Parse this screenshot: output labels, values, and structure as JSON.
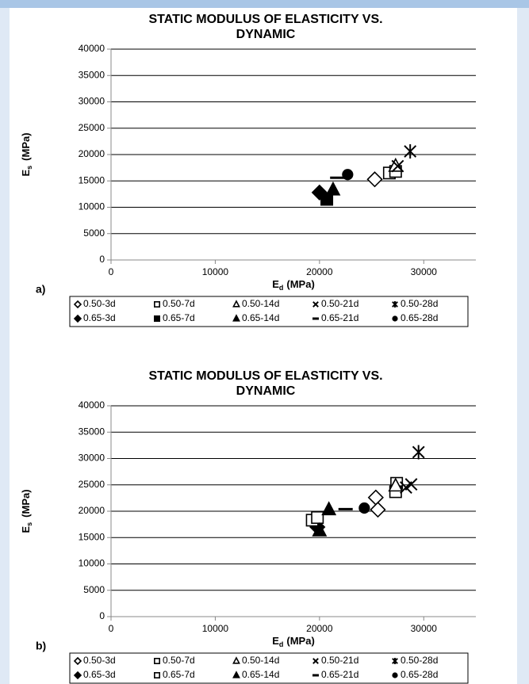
{
  "chart_data": [
    {
      "type": "scatter",
      "panel": "a)",
      "title_lines": [
        "STATIC MODULUS OF ELASTICITY VS.",
        "DYNAMIC"
      ],
      "y_label": {
        "main": "E",
        "sub": "s",
        "unit": "(MPa)"
      },
      "x_label": {
        "main": "E",
        "sub": "d",
        "unit": "(MPa)"
      },
      "xlim": [
        0,
        35000
      ],
      "ylim": [
        0,
        40000
      ],
      "xticks": [
        0,
        10000,
        20000,
        30000
      ],
      "yticks": [
        0,
        5000,
        10000,
        15000,
        20000,
        25000,
        30000,
        35000,
        40000
      ],
      "grid": true,
      "series": [
        {
          "name": "0.50-3d",
          "marker": "diamond-open",
          "color": "#000000",
          "x": [
            25300
          ],
          "values": [
            15300
          ]
        },
        {
          "name": "0.50-7d",
          "marker": "square-open",
          "color": "#000000",
          "x": [
            26700,
            27300
          ],
          "values": [
            16500,
            16800
          ]
        },
        {
          "name": "0.50-14d",
          "marker": "triangle-open",
          "color": "#000000",
          "x": [
            27300
          ],
          "values": [
            17800
          ]
        },
        {
          "name": "0.50-21d",
          "marker": "x",
          "color": "#000000",
          "x": [
            27500
          ],
          "values": [
            17800
          ]
        },
        {
          "name": "0.50-28d",
          "marker": "star",
          "color": "#000000",
          "x": [
            28700
          ],
          "values": [
            20600
          ]
        },
        {
          "name": "0.65-3d",
          "marker": "diamond",
          "color": "#000000",
          "x": [
            20000
          ],
          "values": [
            12800
          ]
        },
        {
          "name": "0.65-7d",
          "marker": "square",
          "color": "#000000",
          "x": [
            20700
          ],
          "values": [
            11500
          ]
        },
        {
          "name": "0.65-14d",
          "marker": "triangle",
          "color": "#000000",
          "x": [
            21300
          ],
          "values": [
            13300
          ]
        },
        {
          "name": "0.65-21d",
          "marker": "dash",
          "color": "#000000",
          "x": [
            21700
          ],
          "values": [
            15600
          ]
        },
        {
          "name": "0.65-28d",
          "marker": "circle",
          "color": "#000000",
          "x": [
            22700
          ],
          "values": [
            16200
          ]
        }
      ]
    },
    {
      "type": "scatter",
      "panel": "b)",
      "title_lines": [
        "STATIC MODULUS OF ELASTICITY VS.",
        "DYNAMIC"
      ],
      "y_label": {
        "main": "E",
        "sub": "s",
        "unit": "(MPa)"
      },
      "x_label": {
        "main": "E",
        "sub": "d",
        "unit": "(MPa)"
      },
      "xlim": [
        0,
        35000
      ],
      "ylim": [
        0,
        40000
      ],
      "xticks": [
        0,
        10000,
        20000,
        30000
      ],
      "yticks": [
        0,
        5000,
        10000,
        15000,
        20000,
        25000,
        30000,
        35000,
        40000
      ],
      "grid": true,
      "series": [
        {
          "name": "0.50-3d",
          "marker": "diamond-open",
          "color": "#000000",
          "x": [
            25400,
            25600
          ],
          "values": [
            22600,
            20300
          ]
        },
        {
          "name": "0.50-7d",
          "marker": "square-open",
          "color": "#000000",
          "x": [
            27400,
            27300
          ],
          "values": [
            25300,
            23700
          ]
        },
        {
          "name": "0.50-14d",
          "marker": "triangle-open",
          "color": "#000000",
          "x": [
            27300
          ],
          "values": [
            24800
          ]
        },
        {
          "name": "0.50-21d",
          "marker": "x",
          "color": "#000000",
          "x": [
            28300,
            28800
          ],
          "values": [
            24500,
            25100
          ]
        },
        {
          "name": "0.50-28d",
          "marker": "star",
          "color": "#000000",
          "x": [
            29500
          ],
          "values": [
            31200
          ]
        },
        {
          "name": "0.65-3d",
          "marker": "diamond",
          "color": "#000000",
          "x": [
            19800
          ],
          "values": [
            17000
          ]
        },
        {
          "name": "0.65-7d",
          "marker": "square-open",
          "color": "#000000",
          "x": [
            19300,
            19800
          ],
          "values": [
            18300,
            18800
          ]
        },
        {
          "name": "0.65-14d",
          "marker": "triangle",
          "color": "#000000",
          "x": [
            20000,
            20900
          ],
          "values": [
            16300,
            20300
          ]
        },
        {
          "name": "0.65-21d",
          "marker": "dash",
          "color": "#000000",
          "x": [
            22500
          ],
          "values": [
            20400
          ]
        },
        {
          "name": "0.65-28d",
          "marker": "circle",
          "color": "#000000",
          "x": [
            24300
          ],
          "values": [
            20600
          ]
        }
      ]
    }
  ]
}
